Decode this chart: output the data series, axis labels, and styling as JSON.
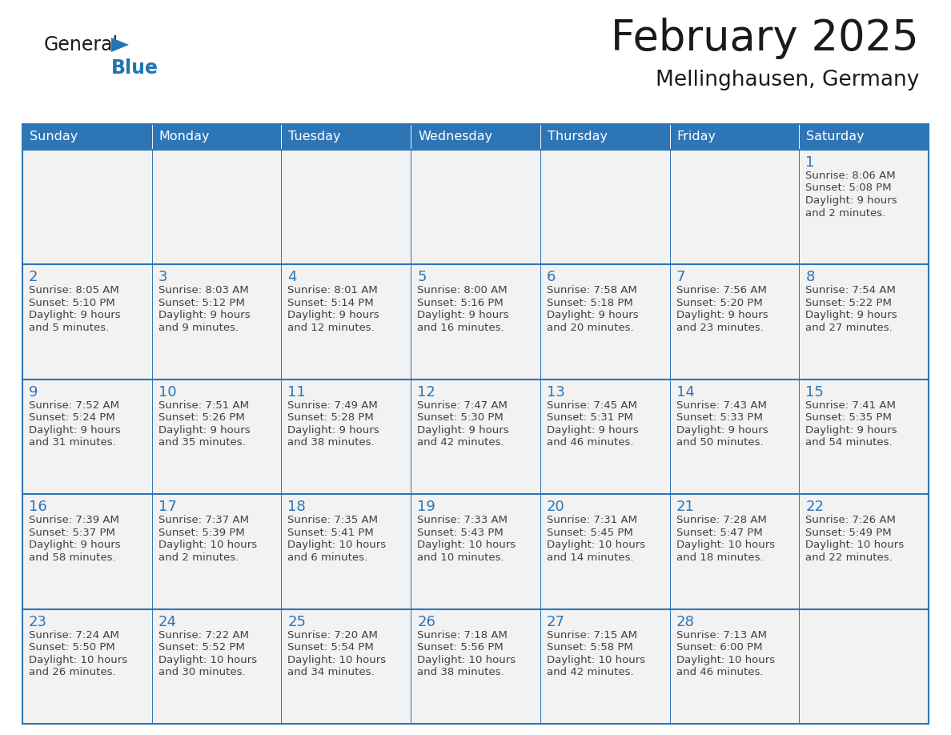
{
  "title": "February 2025",
  "subtitle": "Mellinghausen, Germany",
  "header_bg": "#2E75B6",
  "header_text_color": "#FFFFFF",
  "cell_border_color": "#2E75B6",
  "cell_border_top_color": "#2E75B6",
  "day_number_color": "#2E75B6",
  "cell_text_color": "#404040",
  "cell_bg_color": "#F2F2F2",
  "background_color": "#FFFFFF",
  "days_of_week": [
    "Sunday",
    "Monday",
    "Tuesday",
    "Wednesday",
    "Thursday",
    "Friday",
    "Saturday"
  ],
  "calendar_data": [
    [
      null,
      null,
      null,
      null,
      null,
      null,
      {
        "day": 1,
        "sunrise": "8:06 AM",
        "sunset": "5:08 PM",
        "daylight_h": "9 hours",
        "daylight_m": "and 2 minutes."
      }
    ],
    [
      {
        "day": 2,
        "sunrise": "8:05 AM",
        "sunset": "5:10 PM",
        "daylight_h": "9 hours",
        "daylight_m": "and 5 minutes."
      },
      {
        "day": 3,
        "sunrise": "8:03 AM",
        "sunset": "5:12 PM",
        "daylight_h": "9 hours",
        "daylight_m": "and 9 minutes."
      },
      {
        "day": 4,
        "sunrise": "8:01 AM",
        "sunset": "5:14 PM",
        "daylight_h": "9 hours",
        "daylight_m": "and 12 minutes."
      },
      {
        "day": 5,
        "sunrise": "8:00 AM",
        "sunset": "5:16 PM",
        "daylight_h": "9 hours",
        "daylight_m": "and 16 minutes."
      },
      {
        "day": 6,
        "sunrise": "7:58 AM",
        "sunset": "5:18 PM",
        "daylight_h": "9 hours",
        "daylight_m": "and 20 minutes."
      },
      {
        "day": 7,
        "sunrise": "7:56 AM",
        "sunset": "5:20 PM",
        "daylight_h": "9 hours",
        "daylight_m": "and 23 minutes."
      },
      {
        "day": 8,
        "sunrise": "7:54 AM",
        "sunset": "5:22 PM",
        "daylight_h": "9 hours",
        "daylight_m": "and 27 minutes."
      }
    ],
    [
      {
        "day": 9,
        "sunrise": "7:52 AM",
        "sunset": "5:24 PM",
        "daylight_h": "9 hours",
        "daylight_m": "and 31 minutes."
      },
      {
        "day": 10,
        "sunrise": "7:51 AM",
        "sunset": "5:26 PM",
        "daylight_h": "9 hours",
        "daylight_m": "and 35 minutes."
      },
      {
        "day": 11,
        "sunrise": "7:49 AM",
        "sunset": "5:28 PM",
        "daylight_h": "9 hours",
        "daylight_m": "and 38 minutes."
      },
      {
        "day": 12,
        "sunrise": "7:47 AM",
        "sunset": "5:30 PM",
        "daylight_h": "9 hours",
        "daylight_m": "and 42 minutes."
      },
      {
        "day": 13,
        "sunrise": "7:45 AM",
        "sunset": "5:31 PM",
        "daylight_h": "9 hours",
        "daylight_m": "and 46 minutes."
      },
      {
        "day": 14,
        "sunrise": "7:43 AM",
        "sunset": "5:33 PM",
        "daylight_h": "9 hours",
        "daylight_m": "and 50 minutes."
      },
      {
        "day": 15,
        "sunrise": "7:41 AM",
        "sunset": "5:35 PM",
        "daylight_h": "9 hours",
        "daylight_m": "and 54 minutes."
      }
    ],
    [
      {
        "day": 16,
        "sunrise": "7:39 AM",
        "sunset": "5:37 PM",
        "daylight_h": "9 hours",
        "daylight_m": "and 58 minutes."
      },
      {
        "day": 17,
        "sunrise": "7:37 AM",
        "sunset": "5:39 PM",
        "daylight_h": "10 hours",
        "daylight_m": "and 2 minutes."
      },
      {
        "day": 18,
        "sunrise": "7:35 AM",
        "sunset": "5:41 PM",
        "daylight_h": "10 hours",
        "daylight_m": "and 6 minutes."
      },
      {
        "day": 19,
        "sunrise": "7:33 AM",
        "sunset": "5:43 PM",
        "daylight_h": "10 hours",
        "daylight_m": "and 10 minutes."
      },
      {
        "day": 20,
        "sunrise": "7:31 AM",
        "sunset": "5:45 PM",
        "daylight_h": "10 hours",
        "daylight_m": "and 14 minutes."
      },
      {
        "day": 21,
        "sunrise": "7:28 AM",
        "sunset": "5:47 PM",
        "daylight_h": "10 hours",
        "daylight_m": "and 18 minutes."
      },
      {
        "day": 22,
        "sunrise": "7:26 AM",
        "sunset": "5:49 PM",
        "daylight_h": "10 hours",
        "daylight_m": "and 22 minutes."
      }
    ],
    [
      {
        "day": 23,
        "sunrise": "7:24 AM",
        "sunset": "5:50 PM",
        "daylight_h": "10 hours",
        "daylight_m": "and 26 minutes."
      },
      {
        "day": 24,
        "sunrise": "7:22 AM",
        "sunset": "5:52 PM",
        "daylight_h": "10 hours",
        "daylight_m": "and 30 minutes."
      },
      {
        "day": 25,
        "sunrise": "7:20 AM",
        "sunset": "5:54 PM",
        "daylight_h": "10 hours",
        "daylight_m": "and 34 minutes."
      },
      {
        "day": 26,
        "sunrise": "7:18 AM",
        "sunset": "5:56 PM",
        "daylight_h": "10 hours",
        "daylight_m": "and 38 minutes."
      },
      {
        "day": 27,
        "sunrise": "7:15 AM",
        "sunset": "5:58 PM",
        "daylight_h": "10 hours",
        "daylight_m": "and 42 minutes."
      },
      {
        "day": 28,
        "sunrise": "7:13 AM",
        "sunset": "6:00 PM",
        "daylight_h": "10 hours",
        "daylight_m": "and 46 minutes."
      },
      null
    ]
  ],
  "logo_general_color": "#1a1a1a",
  "logo_blue_color": "#2175B0",
  "logo_triangle_color": "#2175B0",
  "title_color": "#1a1a1a",
  "subtitle_color": "#1a1a1a"
}
